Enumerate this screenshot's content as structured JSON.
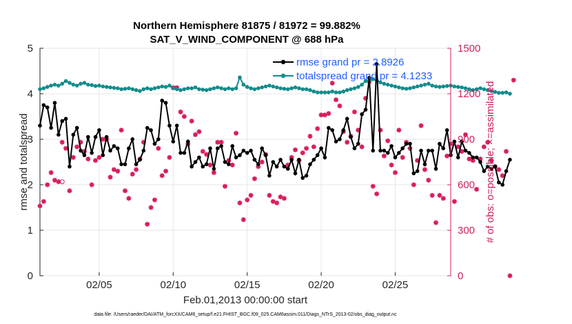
{
  "chart_data": {
    "type": "line",
    "title_line1": "Northern Hemisphere 81875 / 81972 = 99.882%",
    "title_line2": "SAT_V_WIND_COMPONENT @ 688 hPa",
    "xlabel": "Feb.01,2013 00:00:00 start",
    "ylabel_left": "rmse and totalspread",
    "ylabel_right": "# of obs: o=possible; ×=assimilated",
    "footer": "data file: /Users/raeder/DAI/ATM_forcXX/CAM6_setup/f.e21.FHIST_BGC.f09_025.CAM6assim.011/Diags_NTrS_2013-02/obs_diag_output.nc",
    "xlim": [
      1,
      28.75
    ],
    "ylim_left": [
      0,
      5
    ],
    "ylim_right": [
      0,
      1500
    ],
    "x_ticks": [
      5,
      10,
      15,
      20,
      25
    ],
    "x_tick_labels": [
      "02/05",
      "02/10",
      "02/15",
      "02/20",
      "02/25"
    ],
    "y_ticks_left": [
      "0",
      "1",
      "2",
      "3",
      "4",
      "5"
    ],
    "y_ticks_right": [
      "0",
      "300",
      "600",
      "900",
      "1200",
      "1500"
    ],
    "colors": {
      "rmse": "#000000",
      "spread": "#128c8c",
      "obs": "#d81b60",
      "legend_text": "#1f5fff"
    },
    "series": [
      {
        "name": "rmse grand pr = 2.8926",
        "x_start": 1.0,
        "x_step": 0.25,
        "values": [
          3.3,
          3.75,
          3.7,
          3.25,
          3.8,
          3.1,
          3.4,
          3.45,
          2.4,
          3.1,
          3.25,
          2.75,
          2.65,
          3.05,
          2.7,
          3.05,
          3.2,
          2.65,
          3.05,
          2.75,
          2.85,
          2.8,
          2.45,
          2.45,
          2.8,
          3.0,
          2.45,
          2.55,
          2.75,
          3.25,
          3.2,
          2.9,
          3.0,
          3.85,
          3.8,
          3.3,
          2.95,
          3.3,
          2.7,
          2.7,
          2.95,
          2.4,
          2.5,
          2.6,
          2.4,
          2.45,
          2.8,
          2.35,
          2.8,
          2.85,
          2.5,
          2.45,
          2.85,
          2.6,
          2.65,
          2.75,
          2.7,
          2.75,
          2.55,
          2.45,
          2.8,
          2.65,
          2.2,
          2.5,
          2.4,
          2.55,
          2.4,
          2.35,
          2.55,
          2.25,
          2.55,
          2.15,
          2.2,
          2.45,
          2.55,
          2.65,
          2.8,
          2.6,
          3.25,
          3.2,
          2.95,
          3.0,
          3.2,
          3.45,
          3.05,
          2.8,
          2.9,
          3.55,
          3.65,
          4.35,
          2.75,
          4.65,
          2.75,
          2.75,
          2.7,
          2.85,
          2.6,
          2.7,
          2.8,
          2.9,
          2.9,
          2.25,
          2.3,
          2.75,
          2.45,
          2.75,
          2.75,
          2.35,
          2.9,
          2.8,
          3.2,
          2.65,
          2.95,
          2.6,
          2.95,
          2.75,
          2.7,
          2.6,
          2.6,
          2.5,
          2.3,
          2.4,
          2.35,
          2.4,
          2.05,
          2.0,
          2.3,
          2.55
        ]
      },
      {
        "name": "totalspread grand pr = 4.1233",
        "x_start": 1.0,
        "x_step": 0.25,
        "values": [
          4.1,
          4.12,
          4.15,
          4.18,
          4.2,
          4.18,
          4.22,
          4.28,
          4.24,
          4.2,
          4.18,
          4.22,
          4.24,
          4.2,
          4.19,
          4.17,
          4.18,
          4.16,
          4.15,
          4.14,
          4.13,
          4.12,
          4.1,
          4.11,
          4.12,
          4.1,
          4.08,
          4.06,
          4.1,
          4.12,
          4.1,
          4.12,
          4.14,
          4.16,
          4.15,
          4.18,
          4.12,
          4.1,
          4.08,
          4.1,
          4.12,
          4.12,
          4.14,
          4.1,
          4.09,
          4.08,
          4.1,
          4.12,
          4.14,
          4.12,
          4.1,
          4.12,
          4.1,
          4.12,
          4.36,
          4.2,
          4.15,
          4.12,
          4.1,
          4.12,
          4.14,
          4.16,
          4.18,
          4.16,
          4.14,
          4.12,
          4.11,
          4.1,
          4.12,
          4.14,
          4.12,
          4.1,
          4.1,
          4.08,
          4.05,
          4.03,
          4.03,
          4.03,
          4.03,
          4.05,
          4.03,
          4.03,
          4.05,
          4.08,
          4.1,
          4.12,
          4.15,
          4.2,
          4.28,
          4.3,
          4.32,
          4.3,
          4.25,
          4.22,
          4.2,
          4.18,
          4.16,
          4.14,
          4.12,
          4.11,
          4.12,
          4.14,
          4.16,
          4.18,
          4.2,
          4.22,
          4.18,
          4.16,
          4.15,
          4.16,
          4.17,
          4.18,
          4.16,
          4.15,
          4.14,
          4.12,
          4.1,
          4.08,
          4.1,
          4.12,
          4.1,
          4.08,
          4.06,
          4.04,
          4.02,
          4.02,
          4.03,
          4.0
        ]
      },
      {
        "name": "# obs assimilated",
        "x_start": 1.0,
        "x_step": 0.25,
        "values": [
          460,
          490,
          600,
          680,
          630,
          620,
          880,
          840,
          560,
          780,
          850,
          880,
          820,
          770,
          600,
          760,
          780,
          900,
          900,
          650,
          700,
          690,
          960,
          560,
          510,
          670,
          700,
          770,
          880,
          340,
          450,
          500,
          840,
          660,
          690,
          780,
          1240,
          1240,
          1080,
          1050,
          870,
          1020,
          930,
          950,
          820,
          800,
          730,
          680,
          880,
          880,
          590,
          760,
          730,
          940,
          480,
          370,
          500,
          530,
          640,
          720,
          750,
          800,
          530,
          490,
          480,
          520,
          510,
          730,
          780,
          830,
          760,
          810,
          840,
          920,
          850,
          970,
          1060,
          1060,
          1070,
          1270,
          1160,
          1120,
          950,
          880,
          920,
          1080,
          960,
          850,
          1170,
          1280,
          590,
          540,
          960,
          790,
          890,
          730,
          680,
          960,
          780,
          880,
          840,
          600,
          760,
          990,
          700,
          630,
          530,
          350,
          530,
          510,
          790,
          870,
          490,
          850,
          820,
          930,
          770,
          760,
          570,
          770,
          850,
          880,
          760,
          720,
          700,
          660,
          820,
          0,
          1290
        ]
      }
    ],
    "possible_marker": {
      "x": 2.5,
      "y": 620
    },
    "legend": [
      {
        "label": "rmse grand pr = 2.8926"
      },
      {
        "label": "totalspread grand pr = 4.1233"
      }
    ]
  }
}
